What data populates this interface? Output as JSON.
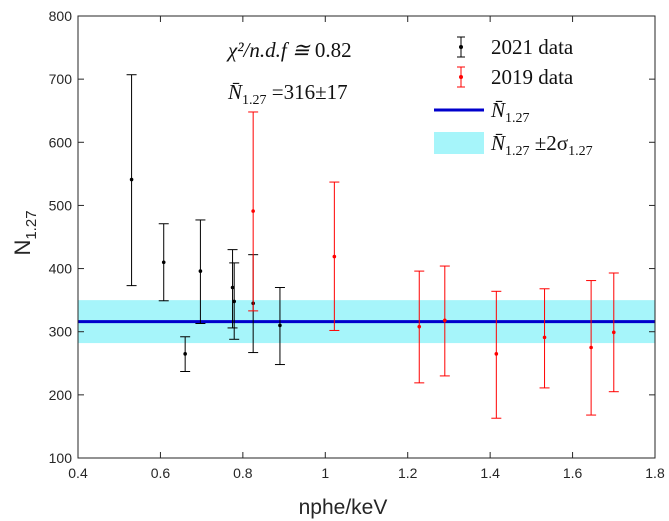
{
  "chart_data": {
    "type": "scatter",
    "xlabel": "nphe/keV",
    "ylabel": "N",
    "ylabel_sub": "1.27",
    "xlim": [
      0.4,
      1.8
    ],
    "ylim": [
      100,
      800
    ],
    "x_ticks": [
      0.4,
      0.6,
      0.8,
      1,
      1.2,
      1.4,
      1.6,
      1.8
    ],
    "x_tick_labels": [
      "0.4",
      "0.6",
      "0.8",
      "1",
      "1.2",
      "1.4",
      "1.6",
      "1.8"
    ],
    "y_ticks": [
      100,
      200,
      300,
      400,
      500,
      600,
      700,
      800
    ],
    "y_tick_labels": [
      "100",
      "200",
      "300",
      "400",
      "500",
      "600",
      "700",
      "800"
    ],
    "grid": false,
    "legend_position": "top-right",
    "annotations": [
      {
        "id": "chi2",
        "pre": "χ²/n.d.f ≅ ",
        "value": "0.82"
      },
      {
        "id": "nbar",
        "symbol": "N̄",
        "sub": "1.27",
        "post": " =316±17"
      }
    ],
    "series": [
      {
        "name": "2021 data",
        "color": "#000000",
        "points": [
          {
            "x": 0.53,
            "y": 541,
            "low": 373,
            "high": 707
          },
          {
            "x": 0.608,
            "y": 410,
            "low": 349,
            "high": 471
          },
          {
            "x": 0.66,
            "y": 265,
            "low": 237,
            "high": 292
          },
          {
            "x": 0.697,
            "y": 396,
            "low": 313,
            "high": 477
          },
          {
            "x": 0.775,
            "y": 370,
            "low": 306,
            "high": 430
          },
          {
            "x": 0.779,
            "y": 348,
            "low": 288,
            "high": 409
          },
          {
            "x": 0.825,
            "y": 345,
            "low": 267,
            "high": 422
          },
          {
            "x": 0.89,
            "y": 310,
            "low": 248,
            "high": 370
          }
        ]
      },
      {
        "name": "2019 data",
        "color": "#ff0000",
        "points": [
          {
            "x": 0.825,
            "y": 491,
            "low": 333,
            "high": 648
          },
          {
            "x": 1.022,
            "y": 419,
            "low": 302,
            "high": 537
          },
          {
            "x": 1.228,
            "y": 308,
            "low": 219,
            "high": 396
          },
          {
            "x": 1.29,
            "y": 318,
            "low": 230,
            "high": 404
          },
          {
            "x": 1.415,
            "y": 265,
            "low": 163,
            "high": 364
          },
          {
            "x": 1.532,
            "y": 291,
            "low": 211,
            "high": 368
          },
          {
            "x": 1.645,
            "y": 275,
            "low": 168,
            "high": 381
          },
          {
            "x": 1.7,
            "y": 299,
            "low": 205,
            "high": 393
          }
        ]
      }
    ],
    "mean_line": {
      "name": "N̄",
      "sub": "1.27",
      "y": 316,
      "color": "#0000cc"
    },
    "band": {
      "name": "N̄",
      "sub": "1.27",
      "post": " ±2σ",
      "post_sub": "1.27",
      "y_low": 282,
      "y_high": 350,
      "color": "#a6f5fa"
    }
  }
}
